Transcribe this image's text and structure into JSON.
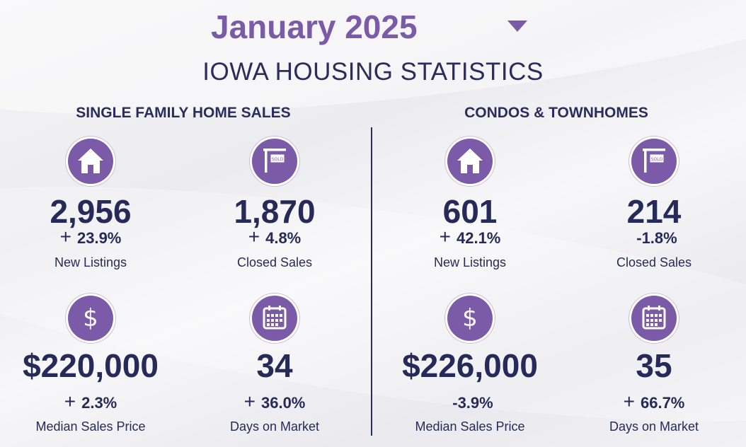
{
  "header": {
    "month": "January 2025",
    "state_title": "IOWA HOUSING STATISTICS"
  },
  "sections": {
    "single_family": {
      "title": "SINGLE FAMILY HOME SALES",
      "new_listings": {
        "value": "2,956",
        "sign": "+",
        "change": "23.9%",
        "label": "New Listings"
      },
      "closed_sales": {
        "value": "1,870",
        "sign": "+",
        "change": "4.8%",
        "label": "Closed Sales"
      },
      "median_price": {
        "value": "$220,000",
        "sign": "+",
        "change": "2.3%",
        "label": "Median Sales Price"
      },
      "days_on_market": {
        "value": "34",
        "sign": "+",
        "change": "36.0%",
        "label": "Days on Market"
      }
    },
    "condos": {
      "title": "CONDOS & TOWNHOMES",
      "new_listings": {
        "value": "601",
        "sign": "+",
        "change": "42.1%",
        "label": "New Listings"
      },
      "closed_sales": {
        "value": "214",
        "sign": "",
        "change": "-1.8%",
        "label": "Closed Sales"
      },
      "median_price": {
        "value": "$226,000",
        "sign": "",
        "change": "-3.9%",
        "label": "Median Sales Price"
      },
      "days_on_market": {
        "value": "35",
        "sign": "+",
        "change": "66.7%",
        "label": "Days on Market"
      }
    }
  },
  "icons": {
    "dollar_glyph": "$",
    "sold_sign_text": "SOLD"
  },
  "colors": {
    "accent": "#7b5aa8",
    "navy": "#262a58"
  }
}
